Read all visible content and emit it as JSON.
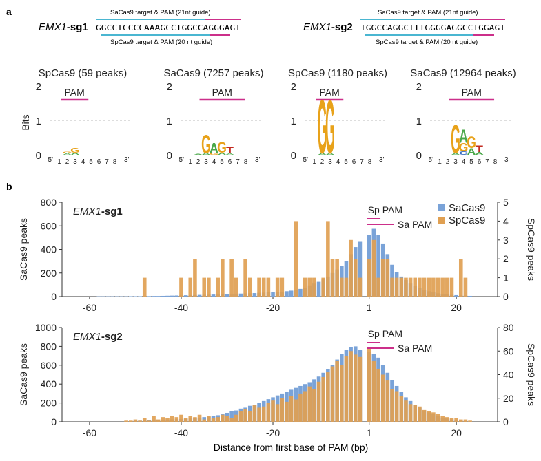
{
  "panels": {
    "a_label": "a",
    "b_label": "b"
  },
  "guides": [
    {
      "gene": "EMX1",
      "suffix": "-sg1",
      "sequence": "GGCCTCCCCAAAGCCTGGCCAGGGAGT",
      "sa_label": "SaCas9 target & PAM (21nt guide)",
      "sp_label": "SpCas9 target & PAM (20 nt guide)"
    },
    {
      "gene": "EMX1",
      "suffix": "-sg2",
      "sequence": "TGGCCAGGCTTTGGGGAGGCCTGGAGT",
      "sa_label": "SaCas9 target & PAM (21nt guide)",
      "sp_label": "SpCas9 target & PAM (20 nt guide)"
    }
  ],
  "logos": [
    {
      "title": "SpCas9 (59 peaks)",
      "pam_label": "PAM",
      "positions": [
        "1",
        "2",
        "3",
        "4",
        "5",
        "6",
        "7",
        "8"
      ],
      "end5": "5'",
      "end3": "3'",
      "stacks": [
        {
          "pos": 2,
          "letters": [
            {
              "l": "G",
              "bits": 0.05
            },
            {
              "l": "A",
              "bits": 0.04
            }
          ]
        },
        {
          "pos": 3,
          "letters": [
            {
              "l": "G",
              "bits": 0.14
            },
            {
              "l": "A",
              "bits": 0.06
            }
          ]
        }
      ]
    },
    {
      "title": "SaCas9 (7257 peaks)",
      "pam_label": "PAM",
      "positions": [
        "1",
        "2",
        "3",
        "4",
        "5",
        "6",
        "7",
        "8"
      ],
      "end5": "5'",
      "end3": "3'",
      "stacks": [
        {
          "pos": 2,
          "letters": [
            {
              "l": "A",
              "bits": 0.02
            }
          ]
        },
        {
          "pos": 3,
          "letters": [
            {
              "l": "G",
              "bits": 0.55
            },
            {
              "l": "A",
              "bits": 0.05
            }
          ]
        },
        {
          "pos": 4,
          "letters": [
            {
              "l": "A",
              "bits": 0.3
            },
            {
              "l": "G",
              "bits": 0.06
            }
          ]
        },
        {
          "pos": 5,
          "letters": [
            {
              "l": "G",
              "bits": 0.32
            },
            {
              "l": "A",
              "bits": 0.06
            }
          ]
        },
        {
          "pos": 6,
          "letters": [
            {
              "l": "T",
              "bits": 0.2
            },
            {
              "l": "A",
              "bits": 0.04
            }
          ]
        }
      ]
    },
    {
      "title": "SpCas9 (1180 peaks)",
      "pam_label": "PAM",
      "positions": [
        "1",
        "2",
        "3",
        "4",
        "5",
        "6",
        "7",
        "8"
      ],
      "end5": "5'",
      "end3": "3'",
      "stacks": [
        {
          "pos": 2,
          "letters": [
            {
              "l": "G",
              "bits": 1.6
            },
            {
              "l": "A",
              "bits": 0.05
            }
          ]
        },
        {
          "pos": 3,
          "letters": [
            {
              "l": "G",
              "bits": 1.6
            },
            {
              "l": "A",
              "bits": 0.05
            }
          ]
        }
      ]
    },
    {
      "title": "SaCas9 (12964 peaks)",
      "pam_label": "PAM",
      "positions": [
        "1",
        "2",
        "3",
        "4",
        "5",
        "6",
        "7",
        "8"
      ],
      "end5": "5'",
      "end3": "3'",
      "stacks": [
        {
          "pos": 3,
          "letters": [
            {
              "l": "G",
              "bits": 0.85
            },
            {
              "l": "A",
              "bits": 0.05
            }
          ]
        },
        {
          "pos": 4,
          "letters": [
            {
              "l": "A",
              "bits": 0.4
            },
            {
              "l": "G",
              "bits": 0.25
            },
            {
              "l": "C",
              "bits": 0.1
            }
          ]
        },
        {
          "pos": 5,
          "letters": [
            {
              "l": "G",
              "bits": 0.35
            },
            {
              "l": "A",
              "bits": 0.2
            }
          ]
        },
        {
          "pos": 6,
          "letters": [
            {
              "l": "T",
              "bits": 0.2
            },
            {
              "l": "A",
              "bits": 0.08
            }
          ]
        }
      ]
    }
  ],
  "logo_axis": {
    "ylabel": "Bits",
    "yticks": [
      "0",
      "1",
      "2"
    ]
  },
  "letter_colors": {
    "A": "#4aa84a",
    "C": "#3b6fc2",
    "G": "#e8a21a",
    "T": "#c2291f"
  },
  "colors": {
    "sa": "#7aa3d8",
    "sp": "#e0a052",
    "pam_line": "#cc2f8a",
    "cyan_line": "#4ab6d1"
  },
  "chart_data": [
    {
      "type": "bar",
      "title": "EMX1-sg1",
      "title_gene": "EMX1",
      "title_suffix": "-sg1",
      "xlabel": "Distance from first base of PAM (bp)",
      "ylabel_left": "SaCas9 peaks",
      "ylabel_right": "SpCas9 peaks",
      "xlim": [
        -66,
        29
      ],
      "ylim_left": [
        0,
        800
      ],
      "ylim_right": [
        0,
        5
      ],
      "xticks": [
        -60,
        -40,
        -20,
        1,
        20
      ],
      "xtick_labels": [
        "-60",
        "-40",
        "-20",
        "1",
        "20"
      ],
      "yticks_left": [
        0,
        200,
        400,
        600,
        800
      ],
      "yticks_left_labels": [
        "0",
        "200",
        "400",
        "600",
        "800"
      ],
      "yticks_right": [
        0,
        1,
        2,
        3,
        4,
        5
      ],
      "yticks_right_labels": [
        "0",
        "1",
        "2",
        "3",
        "4",
        "5"
      ],
      "legend": [
        "SaCas9",
        "SpCas9"
      ],
      "annotations": {
        "sp_pam": "Sp PAM",
        "sa_pam": "Sa PAM"
      },
      "series": [
        {
          "name": "SaCas9",
          "axis": "left",
          "x": [
            -58,
            -57,
            -56,
            -55,
            -54,
            -53,
            -52,
            -51,
            -50,
            -49,
            -48,
            -47,
            -46,
            -45,
            -44,
            -43,
            -42,
            -41,
            -40,
            -39,
            -38,
            -37,
            -36,
            -35,
            -34,
            -33,
            -32,
            -31,
            -30,
            -29,
            -28,
            -27,
            -26,
            -25,
            -24,
            -23,
            -22,
            -21,
            -20,
            -19,
            -18,
            -17,
            -16,
            -15,
            -14,
            -13,
            -12,
            -11,
            -10,
            -9,
            -8,
            -7,
            -6,
            -5,
            -4,
            -3,
            -2,
            -1,
            1,
            2,
            3,
            4,
            5,
            6,
            7,
            8,
            9,
            10,
            11,
            12,
            13,
            14,
            15,
            16,
            17,
            18,
            19,
            20,
            21,
            22,
            23
          ],
          "values": [
            2,
            2,
            2,
            2,
            2,
            2,
            2,
            3,
            3,
            3,
            4,
            4,
            5,
            5,
            6,
            7,
            8,
            9,
            10,
            11,
            12,
            13,
            14,
            15,
            16,
            17,
            19,
            20,
            21,
            22,
            24,
            25,
            26,
            28,
            29,
            31,
            33,
            35,
            36,
            38,
            40,
            45,
            50,
            58,
            65,
            75,
            95,
            110,
            125,
            145,
            170,
            200,
            230,
            260,
            300,
            360,
            420,
            470,
            520,
            575,
            520,
            450,
            360,
            270,
            210,
            170,
            140,
            110,
            90,
            70,
            55,
            45,
            35,
            28,
            22,
            18,
            14,
            12,
            10,
            8,
            6
          ]
        },
        {
          "name": "SpCas9",
          "axis": "right",
          "x": [
            -48,
            -40,
            -38,
            -37,
            -35,
            -34,
            -32,
            -31,
            -29,
            -28,
            -26,
            -25,
            -23,
            -22,
            -21,
            -19,
            -18,
            -15,
            -13,
            -12,
            -11,
            -9,
            -8,
            -7,
            -6,
            -5,
            -4,
            -3,
            -2,
            -1,
            1,
            2,
            3,
            4,
            5,
            6,
            7,
            8,
            9,
            10,
            11,
            12,
            13,
            14,
            15,
            16,
            17,
            18,
            19,
            21,
            22
          ],
          "values": [
            1,
            1,
            1,
            2,
            1,
            1,
            1,
            2,
            2,
            1,
            2,
            1,
            1,
            1,
            1,
            1,
            1,
            4,
            1,
            1,
            1,
            1,
            4,
            2,
            2,
            1,
            1,
            3,
            2,
            1,
            2,
            3,
            1,
            2,
            2,
            1,
            1,
            1,
            1,
            1,
            1,
            1,
            1,
            1,
            1,
            1,
            1,
            1,
            1,
            2,
            1
          ]
        }
      ]
    },
    {
      "type": "bar",
      "title": "EMX1-sg2",
      "title_gene": "EMX1",
      "title_suffix": "-sg2",
      "xlabel": "Distance from first base of PAM (bp)",
      "ylabel_left": "SaCas9 peaks",
      "ylabel_right": "SpCas9 peaks",
      "xlim": [
        -66,
        29
      ],
      "ylim_left": [
        0,
        1000
      ],
      "ylim_right": [
        0,
        80
      ],
      "xticks": [
        -60,
        -40,
        -20,
        1,
        20
      ],
      "xtick_labels": [
        "-60",
        "-40",
        "-20",
        "1",
        "20"
      ],
      "yticks_left": [
        0,
        200,
        400,
        600,
        800,
        1000
      ],
      "yticks_left_labels": [
        "0",
        "200",
        "400",
        "600",
        "800",
        "1000"
      ],
      "yticks_right": [
        0,
        20,
        40,
        60,
        80
      ],
      "yticks_right_labels": [
        "0",
        "20",
        "40",
        "60",
        "80"
      ],
      "legend": [
        "SaCas9",
        "SpCas9"
      ],
      "annotations": {
        "sp_pam": "Sp PAM",
        "sa_pam": "Sa PAM"
      },
      "series": [
        {
          "name": "SaCas9",
          "axis": "left",
          "x": [
            -52,
            -51,
            -50,
            -49,
            -48,
            -47,
            -46,
            -45,
            -44,
            -43,
            -42,
            -41,
            -40,
            -39,
            -38,
            -37,
            -36,
            -35,
            -34,
            -33,
            -32,
            -31,
            -30,
            -29,
            -28,
            -27,
            -26,
            -25,
            -24,
            -23,
            -22,
            -21,
            -20,
            -19,
            -18,
            -17,
            -16,
            -15,
            -14,
            -13,
            -12,
            -11,
            -10,
            -9,
            -8,
            -7,
            -6,
            -5,
            -4,
            -3,
            -2,
            -1,
            1,
            2,
            3,
            4,
            5,
            6,
            7,
            8,
            9,
            10,
            11,
            12,
            13,
            14,
            15,
            16,
            17,
            18,
            19,
            20,
            21,
            22,
            23
          ],
          "values": [
            5,
            8,
            10,
            12,
            14,
            16,
            18,
            20,
            22,
            24,
            26,
            28,
            30,
            32,
            36,
            40,
            45,
            50,
            55,
            60,
            70,
            80,
            95,
            110,
            120,
            140,
            150,
            170,
            180,
            200,
            220,
            240,
            260,
            280,
            300,
            320,
            340,
            360,
            380,
            400,
            420,
            450,
            480,
            520,
            560,
            600,
            660,
            720,
            760,
            790,
            800,
            760,
            740,
            720,
            680,
            600,
            520,
            440,
            380,
            320,
            260,
            220,
            180,
            150,
            120,
            100,
            80,
            60,
            45,
            35,
            25,
            18,
            12,
            8,
            5
          ]
        },
        {
          "name": "SpCas9",
          "axis": "right",
          "x": [
            -52,
            -51,
            -50,
            -49,
            -48,
            -47,
            -46,
            -45,
            -44,
            -43,
            -42,
            -41,
            -40,
            -39,
            -38,
            -37,
            -36,
            -35,
            -34,
            -33,
            -32,
            -31,
            -30,
            -29,
            -28,
            -27,
            -26,
            -25,
            -24,
            -23,
            -22,
            -21,
            -20,
            -19,
            -18,
            -17,
            -16,
            -15,
            -14,
            -13,
            -12,
            -11,
            -10,
            -9,
            -8,
            -7,
            -6,
            -5,
            -4,
            -3,
            -2,
            -1,
            1,
            2,
            3,
            4,
            5,
            6,
            7,
            8,
            9,
            10,
            11,
            12,
            13,
            14,
            15,
            16,
            17,
            18,
            19,
            20,
            21,
            22,
            23
          ],
          "values": [
            1,
            1,
            2,
            1,
            3,
            1,
            5,
            2,
            4,
            3,
            5,
            4,
            6,
            3,
            5,
            4,
            6,
            2,
            5,
            3,
            4,
            6,
            5,
            3,
            6,
            9,
            11,
            9,
            14,
            12,
            13,
            16,
            18,
            15,
            20,
            17,
            22,
            19,
            24,
            26,
            30,
            28,
            34,
            38,
            42,
            47,
            52,
            48,
            56,
            60,
            57,
            55,
            62,
            52,
            45,
            40,
            35,
            28,
            26,
            22,
            18,
            15,
            14,
            13,
            10,
            9,
            8,
            7,
            5,
            4,
            3,
            3,
            2,
            2,
            1
          ]
        }
      ]
    }
  ]
}
